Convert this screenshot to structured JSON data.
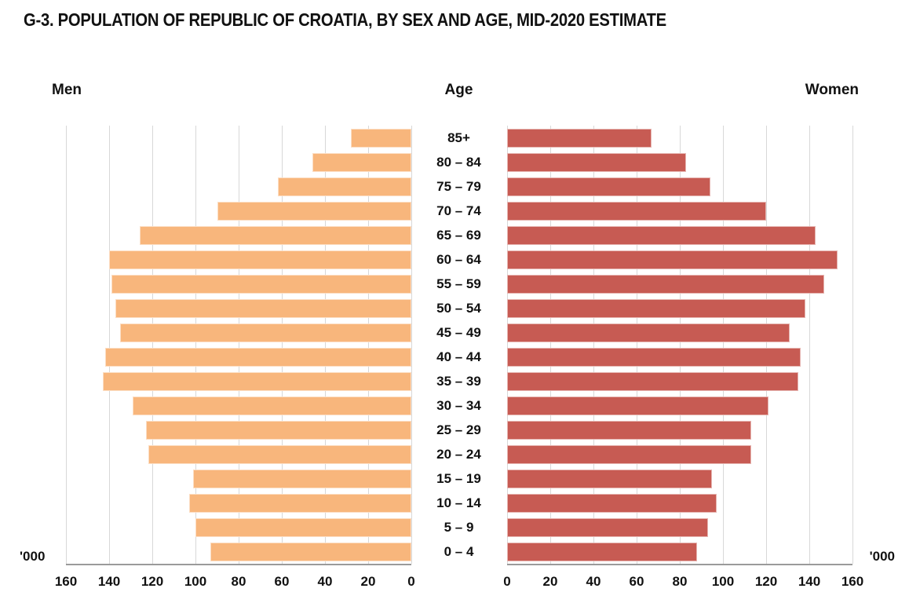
{
  "title": "G-3. POPULATION OF REPUBLIC OF CROATIA, BY SEX AND AGE, MID-2020 ESTIMATE",
  "headers": {
    "men": "Men",
    "age": "Age",
    "women": "Women"
  },
  "units_left": "'000",
  "units_right": "'000",
  "colors": {
    "men_bar": "#F8B67C",
    "women_bar": "#C75B53",
    "gridline": "#D8D8D8",
    "axis_line": "#9A9A9A",
    "text": "#111111"
  },
  "chart_data": {
    "type": "bar",
    "subtype": "population-pyramid",
    "title": "G-3. POPULATION OF REPUBLIC OF CROATIA, BY SEX AND AGE, MID-2020 ESTIMATE",
    "units": "thousands ('000)",
    "categories_top_to_bottom": [
      "85+",
      "80 – 84",
      "75 – 79",
      "70 – 74",
      "65 – 69",
      "60 – 64",
      "55 – 59",
      "50 – 54",
      "45 – 49",
      "40 – 44",
      "35 – 39",
      "30 – 34",
      "25 – 29",
      "20 – 24",
      "15 – 19",
      "10 – 14",
      "5 – 9",
      "0 – 4"
    ],
    "series": [
      {
        "name": "Men",
        "side": "left",
        "color": "#F8B67C",
        "values": [
          28,
          46,
          62,
          90,
          126,
          140,
          139,
          137,
          135,
          142,
          143,
          129,
          123,
          122,
          101,
          103,
          100,
          93
        ]
      },
      {
        "name": "Women",
        "side": "right",
        "color": "#C75B53",
        "values": [
          67,
          83,
          94,
          120,
          143,
          153,
          147,
          138,
          131,
          136,
          135,
          121,
          113,
          113,
          95,
          97,
          93,
          88
        ]
      }
    ],
    "axis": {
      "min": 0,
      "max": 160,
      "tick_step": 20,
      "ticks": [
        0,
        20,
        40,
        60,
        80,
        100,
        120,
        140,
        160
      ]
    },
    "grid": true,
    "legend": "none",
    "center_axis_label": "Age"
  }
}
